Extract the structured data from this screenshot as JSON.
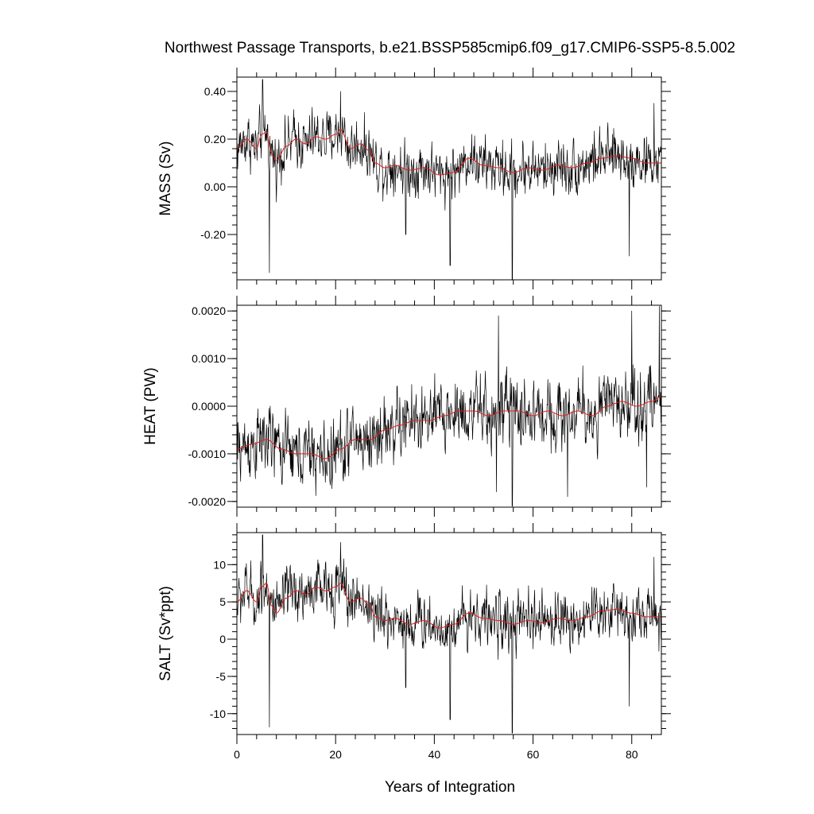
{
  "chart_data": {
    "type": "line",
    "title": "Northwest Passage Transports, b.e21.BSSP585cmip6.f09_g17.CMIP6-SSP5-8.5.002",
    "xlabel": "Years of Integration",
    "xlim": [
      0,
      86
    ],
    "xticks": [
      0,
      20,
      40,
      60,
      80
    ],
    "xtick_labels": [
      "0",
      "20",
      "40",
      "60",
      "80"
    ],
    "grid": false,
    "legend": "none",
    "colors": {
      "monthly": "#000000",
      "smoothed": "#e01e1e"
    },
    "panels": [
      {
        "name": "mass",
        "ylabel": "MASS (Sv)",
        "ylim": [
          -0.39,
          0.46
        ],
        "yticks": [
          0.4,
          0.2,
          0.0,
          -0.2
        ],
        "ytick_labels": [
          "0.40",
          "0.20",
          "0.00",
          "-0.20"
        ],
        "minor_step": 0.04,
        "smooth_knots_x": [
          0,
          2,
          4,
          5,
          6,
          7,
          8,
          10,
          12,
          14,
          16,
          18,
          20,
          21,
          23,
          25,
          27,
          28,
          30,
          32,
          35,
          38,
          41,
          44,
          47,
          50,
          53,
          56,
          59,
          62,
          65,
          68,
          71,
          74,
          77,
          80,
          83,
          86
        ],
        "smooth_knots_y": [
          0.16,
          0.2,
          0.16,
          0.22,
          0.23,
          0.14,
          0.11,
          0.17,
          0.2,
          0.18,
          0.21,
          0.2,
          0.22,
          0.24,
          0.16,
          0.18,
          0.15,
          0.1,
          0.08,
          0.09,
          0.07,
          0.08,
          0.05,
          0.06,
          0.12,
          0.09,
          0.08,
          0.06,
          0.08,
          0.07,
          0.09,
          0.08,
          0.1,
          0.12,
          0.13,
          0.12,
          0.1,
          0.1
        ],
        "noise_amp": 0.07,
        "spikes": [
          [
            6.6,
            -0.36
          ],
          [
            55.8,
            -0.4
          ],
          [
            43.2,
            -0.33
          ],
          [
            79.5,
            -0.29
          ],
          [
            5.2,
            0.45
          ],
          [
            21.0,
            0.4
          ],
          [
            34.2,
            -0.2
          ],
          [
            84.5,
            0.35
          ]
        ]
      },
      {
        "name": "heat",
        "ylabel": "HEAT (PW)",
        "ylim": [
          -0.00212,
          0.00212
        ],
        "yticks": [
          0.002,
          0.001,
          0.0,
          -0.001,
          -0.002
        ],
        "ytick_labels": [
          "0.0020",
          "0.0010",
          "0.0000",
          "-0.0010",
          "-0.0020"
        ],
        "minor_step": 0.0002,
        "smooth_knots_x": [
          0,
          3,
          6,
          9,
          12,
          15,
          18,
          21,
          24,
          27,
          30,
          33,
          36,
          39,
          42,
          45,
          48,
          51,
          54,
          57,
          60,
          63,
          66,
          69,
          72,
          75,
          78,
          81,
          84,
          86
        ],
        "smooth_knots_y": [
          -0.0009,
          -0.0008,
          -0.0007,
          -0.0009,
          -0.001,
          -0.001,
          -0.0011,
          -0.0009,
          -0.0007,
          -0.0007,
          -0.0005,
          -0.0004,
          -0.0003,
          -0.0003,
          -0.0002,
          -0.0001,
          -0.0001,
          -0.0002,
          -0.0001,
          -0.0001,
          -0.0002,
          -0.0001,
          -0.0002,
          -0.0001,
          -0.0002,
          0.0,
          0.0001,
          0.0,
          0.0001,
          0.0002
        ],
        "noise_amp": 0.00045,
        "spikes": [
          [
            53.0,
            0.0019
          ],
          [
            55.8,
            -0.0021
          ],
          [
            52.6,
            -0.0018
          ],
          [
            67.0,
            -0.0019
          ],
          [
            80.0,
            0.002
          ],
          [
            85.6,
            0.0021
          ],
          [
            83.0,
            -0.0017
          ]
        ]
      },
      {
        "name": "salt",
        "ylabel": "SALT (Sv*ppt)",
        "ylim": [
          -12.8,
          14.3
        ],
        "yticks": [
          10,
          5,
          0,
          -5,
          -10
        ],
        "ytick_labels": [
          "10",
          "5",
          "0",
          "-5",
          "-10"
        ],
        "minor_step": 1,
        "smooth_knots_x": [
          0,
          2,
          4,
          5,
          6,
          7,
          8,
          10,
          12,
          14,
          16,
          18,
          20,
          21,
          23,
          25,
          27,
          28,
          30,
          32,
          35,
          38,
          41,
          44,
          47,
          50,
          53,
          56,
          59,
          62,
          65,
          68,
          71,
          74,
          77,
          80,
          83,
          86
        ],
        "smooth_knots_y": [
          5.0,
          6.5,
          5.0,
          7.0,
          7.5,
          4.5,
          3.5,
          5.5,
          6.5,
          6.0,
          7.0,
          6.5,
          7.0,
          7.5,
          5.0,
          5.5,
          4.5,
          3.0,
          2.5,
          2.8,
          2.0,
          2.5,
          1.5,
          2.0,
          3.5,
          2.8,
          2.5,
          2.0,
          2.5,
          2.2,
          2.8,
          2.5,
          3.0,
          3.8,
          4.0,
          3.5,
          3.0,
          3.0
        ],
        "noise_amp": 2.3,
        "spikes": [
          [
            6.6,
            -11.8
          ],
          [
            55.8,
            -12.6
          ],
          [
            43.2,
            -10.8
          ],
          [
            79.5,
            -9.0
          ],
          [
            5.2,
            14.0
          ],
          [
            21.0,
            13.0
          ],
          [
            34.2,
            -6.5
          ],
          [
            84.5,
            11.0
          ]
        ]
      }
    ]
  }
}
